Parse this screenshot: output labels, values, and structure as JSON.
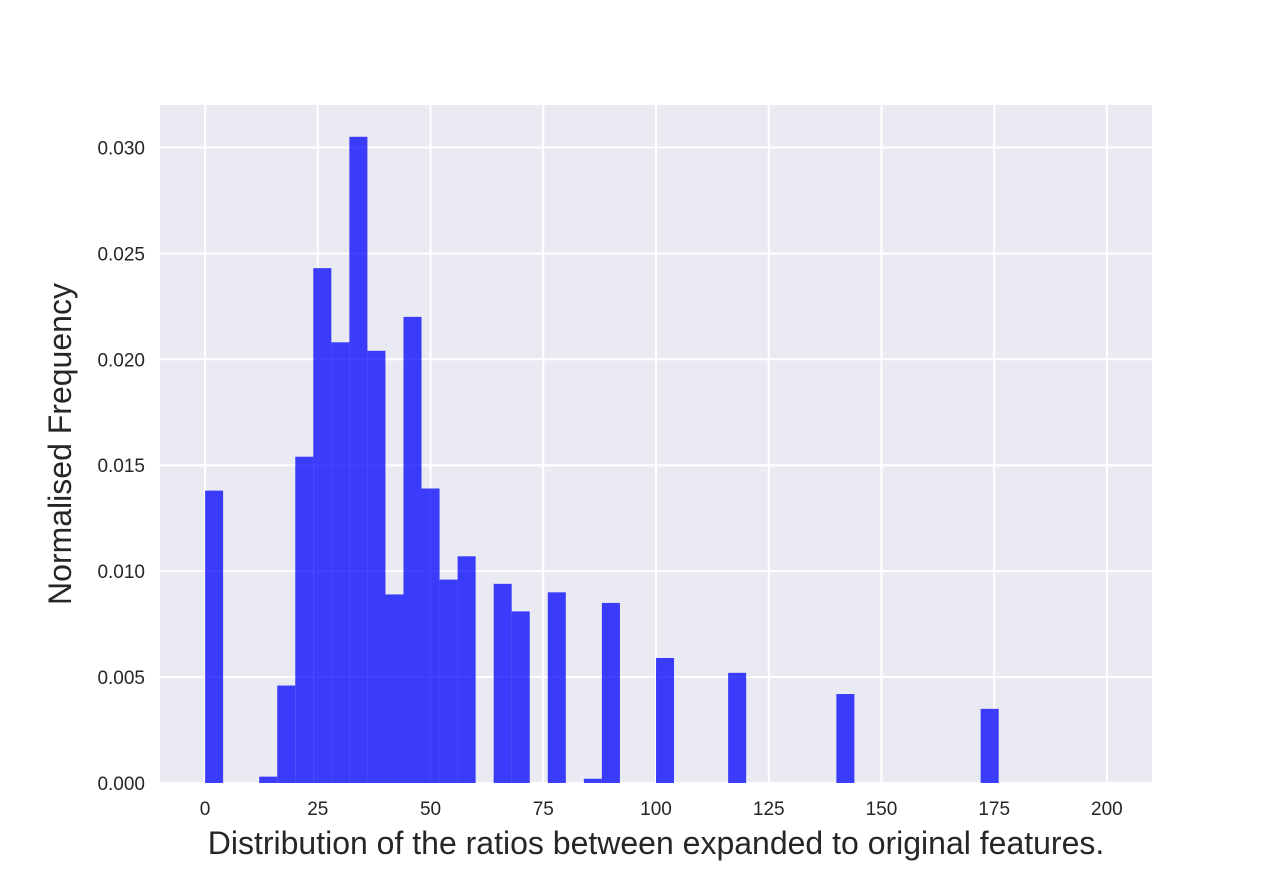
{
  "chart_data": {
    "type": "bar",
    "title": "",
    "xlabel": "Distribution of the ratios between expanded to original features.",
    "ylabel": "Normalised Frequency",
    "xlim": [
      -10,
      210
    ],
    "ylim": [
      0,
      0.032
    ],
    "xticks": [
      0,
      25,
      50,
      75,
      100,
      125,
      150,
      175,
      200
    ],
    "yticks": [
      0.0,
      0.005,
      0.01,
      0.015,
      0.02,
      0.025,
      0.03
    ],
    "ytick_labels": [
      "0.000",
      "0.005",
      "0.010",
      "0.015",
      "0.020",
      "0.025",
      "0.030"
    ],
    "grid": true,
    "background": "#eaeaf2",
    "grid_color": "#ffffff",
    "bar_color": "#0000ff",
    "bar_opacity": 0.75,
    "bins": [
      {
        "x0": 0,
        "x1": 4,
        "value": 0.0138
      },
      {
        "x0": 12,
        "x1": 16,
        "value": 0.0003
      },
      {
        "x0": 16,
        "x1": 20,
        "value": 0.0046
      },
      {
        "x0": 20,
        "x1": 24,
        "value": 0.0154
      },
      {
        "x0": 24,
        "x1": 28,
        "value": 0.0243
      },
      {
        "x0": 28,
        "x1": 32,
        "value": 0.0208
      },
      {
        "x0": 32,
        "x1": 36,
        "value": 0.0305
      },
      {
        "x0": 36,
        "x1": 40,
        "value": 0.0204
      },
      {
        "x0": 40,
        "x1": 44,
        "value": 0.0089
      },
      {
        "x0": 44,
        "x1": 48,
        "value": 0.022
      },
      {
        "x0": 48,
        "x1": 52,
        "value": 0.0139
      },
      {
        "x0": 52,
        "x1": 56,
        "value": 0.0096
      },
      {
        "x0": 56,
        "x1": 60,
        "value": 0.0107
      },
      {
        "x0": 64,
        "x1": 68,
        "value": 0.0094
      },
      {
        "x0": 68,
        "x1": 72,
        "value": 0.0081
      },
      {
        "x0": 76,
        "x1": 80,
        "value": 0.009
      },
      {
        "x0": 84,
        "x1": 88,
        "value": 0.0002
      },
      {
        "x0": 88,
        "x1": 92,
        "value": 0.0085
      },
      {
        "x0": 100,
        "x1": 104,
        "value": 0.0059
      },
      {
        "x0": 116,
        "x1": 120,
        "value": 0.0052
      },
      {
        "x0": 140,
        "x1": 144,
        "value": 0.0042
      },
      {
        "x0": 172,
        "x1": 176,
        "value": 0.0035
      }
    ]
  }
}
